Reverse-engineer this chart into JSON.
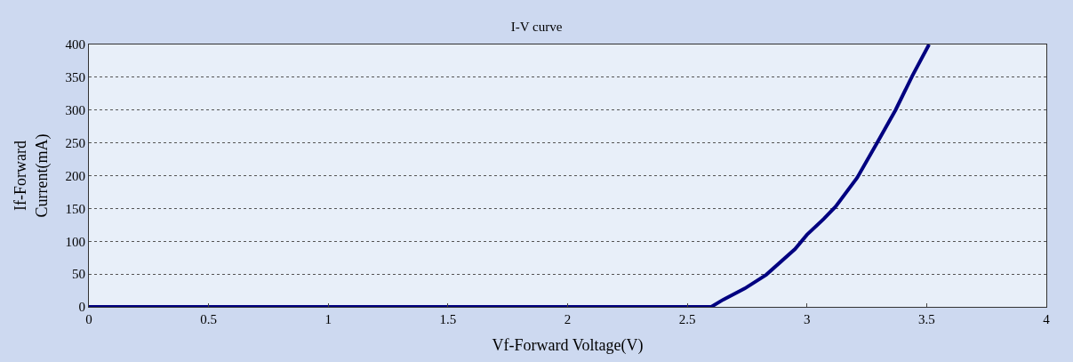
{
  "chart_data": {
    "type": "line",
    "title": "I-V curve",
    "xlabel": "Vf-Forward Voltage(V)",
    "ylabel": "If-Forward\nCurrent(mA)",
    "series": [
      {
        "color": "#000080",
        "x": [
          0,
          2.47,
          2.6,
          2.65,
          2.74,
          2.83,
          2.95,
          3.0,
          3.07,
          3.12,
          3.21,
          3.29,
          3.37,
          3.44,
          3.51
        ],
        "values": [
          0,
          0,
          0,
          11,
          28,
          49,
          88,
          110,
          134,
          153,
          197,
          248,
          300,
          352,
          400
        ]
      }
    ],
    "xlim": [
      0,
      4
    ],
    "xticks": [
      0,
      {
        "value": 0.5,
        "label": "0.5"
      },
      1,
      {
        "value": 1.5,
        "label": "1.5"
      },
      2,
      {
        "value": 2.5,
        "label": "2.5"
      },
      3,
      {
        "value": 3.5,
        "label": "3.5"
      },
      4
    ],
    "ylim": [
      0,
      400
    ],
    "yticks": [
      0,
      50,
      100,
      150,
      200,
      250,
      300,
      350,
      400
    ],
    "grid": "y",
    "legend": false,
    "marker": "none",
    "line_style": "solid"
  }
}
